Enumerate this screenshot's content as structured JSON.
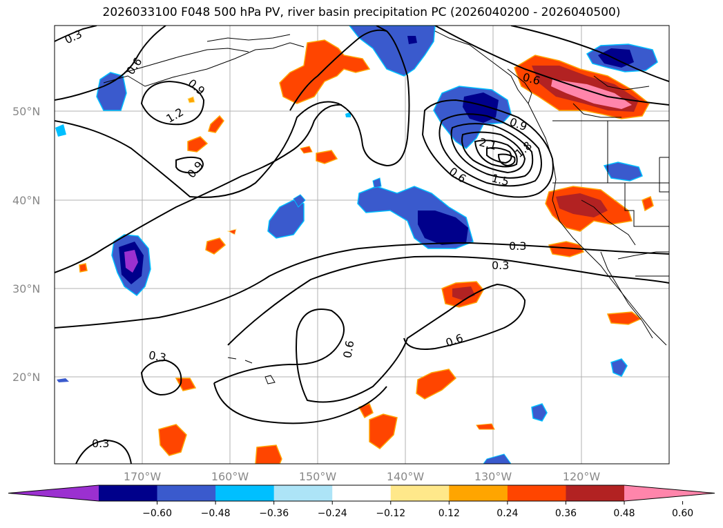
{
  "title": "2026033100 F048 500 hPa PV, river basin precipitation PC (2026040200 - 2026040500)",
  "map": {
    "lat_labels": [
      "50°N",
      "40°N",
      "30°N",
      "20°N"
    ],
    "lon_labels": [
      "170°W",
      "160°W",
      "150°W",
      "140°W",
      "130°W",
      "120°W"
    ],
    "contour_labels": [
      "0.3",
      "0.6",
      "0.9",
      "1.2",
      "0.9",
      "0.6",
      "0.9",
      "1.8",
      "2.1",
      "1.5",
      "0.6",
      "0.3",
      "0.3",
      "0.6",
      "0.6",
      "0.3",
      "0.3"
    ]
  },
  "colorbar": {
    "ticks": [
      "−0.60",
      "−0.48",
      "−0.36",
      "−0.24",
      "−0.12",
      "0.12",
      "0.24",
      "0.36",
      "0.48",
      "0.60"
    ],
    "colors": [
      "#9b30d0",
      "#00008b",
      "#3a5acd",
      "#00bfff",
      "#ade4f7",
      "#ffffff",
      "#ffe88a",
      "#ffa500",
      "#ff4500",
      "#b22222",
      "#ff85ab"
    ]
  },
  "colors": {
    "purple": "#9b30d0",
    "navy": "#00008b",
    "blue": "#3a5acd",
    "deepsky": "#00bfff",
    "lightblue": "#ade4f7",
    "yellow": "#ffe88a",
    "orange": "#ffa500",
    "redorange": "#ff4500",
    "firebrick": "#b22222",
    "pink": "#ff85ab"
  }
}
